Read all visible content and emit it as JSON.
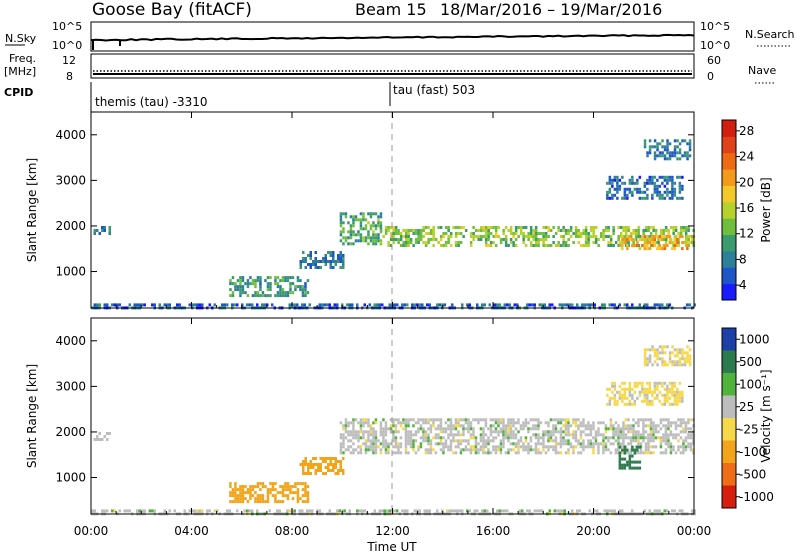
{
  "header": {
    "station": "Goose Bay (fitACF)",
    "beam": "Beam 15",
    "dates": "18/Mar/2016 – 19/Mar/2016"
  },
  "top_strip": {
    "nsky_label": "N.Sky",
    "nsearch_label": "N.Search",
    "left_ticks": [
      "10^5",
      "10^0"
    ],
    "right_ticks": [
      "10^5",
      "10^0"
    ],
    "freq_label_1": "Freq.",
    "freq_label_2": "[MHz]",
    "freq_ticks": [
      "12",
      "8"
    ],
    "nave_label": "Nave",
    "nave_ticks": [
      "60",
      "0"
    ],
    "cpid_label": "CPID",
    "cpid_left": "themis (tau) -3310",
    "cpid_right": "tau (fast) 503",
    "cpid_switch_hour": 12
  },
  "axes": {
    "x_ticks": [
      "00:00",
      "04:00",
      "08:00",
      "12:00",
      "16:00",
      "20:00",
      "00:00"
    ],
    "x_label": "Time UT",
    "y_ticks": [
      "1000",
      "2000",
      "3000",
      "4000"
    ],
    "y_label": "Slant Range [km]",
    "y_range": [
      200,
      4500
    ],
    "x_range": [
      0,
      24
    ]
  },
  "power_scale": {
    "label": "Power [dB]",
    "ticks": [
      "4",
      "8",
      "12",
      "16",
      "20",
      "24",
      "28"
    ],
    "colors": [
      "#1a1aff",
      "#1f55c8",
      "#2e7f9a",
      "#3a9b6e",
      "#6ebf3e",
      "#b6d12a",
      "#f2c82a",
      "#f39a1a",
      "#ef6a14",
      "#e0401a",
      "#d21e10"
    ]
  },
  "velocity_scale": {
    "label": "Velocity  [m s⁻¹]",
    "ticks": [
      "1000",
      "500",
      "100",
      "25",
      "-25",
      "-100",
      "-500",
      "-1000"
    ],
    "colors": [
      "#1d3fa8",
      "#2c7a4e",
      "#50b43c",
      "#bdbdbd",
      "#f6d94a",
      "#f2a41a",
      "#ef6d14",
      "#d61e10"
    ]
  },
  "chart_data": [
    {
      "type": "heatmap",
      "title": "",
      "xlabel": "Time UT",
      "ylabel": "Slant Range [km]",
      "colorbar_label": "Power [dB]",
      "xlim": [
        0,
        24
      ],
      "ylim": [
        200,
        4500
      ],
      "regions": [
        {
          "t": [
            0.1,
            0.7
          ],
          "r": [
            1850,
            2000
          ],
          "power": 8
        },
        {
          "t": [
            5.5,
            8.6
          ],
          "r": [
            500,
            900
          ],
          "power": 10
        },
        {
          "t": [
            8.3,
            10.0
          ],
          "r": [
            1100,
            1450
          ],
          "power": 8
        },
        {
          "t": [
            9.9,
            11.5
          ],
          "r": [
            1600,
            2300
          ],
          "power": 11
        },
        {
          "t": [
            11.5,
            24.0
          ],
          "r": [
            1550,
            2000
          ],
          "power": 14
        },
        {
          "t": [
            21.0,
            24.0
          ],
          "r": [
            1500,
            1800
          ],
          "power": 20
        },
        {
          "t": [
            20.5,
            23.5
          ],
          "r": [
            2600,
            3100
          ],
          "power": 7
        },
        {
          "t": [
            22.0,
            23.8
          ],
          "r": [
            3500,
            3900
          ],
          "power": 7
        },
        {
          "t": [
            0.0,
            24.0
          ],
          "r": [
            200,
            300
          ],
          "power": 6
        }
      ]
    },
    {
      "type": "heatmap",
      "title": "",
      "xlabel": "Time UT",
      "ylabel": "Slant Range [km]",
      "colorbar_label": "Velocity [m s-1]",
      "xlim": [
        0,
        24
      ],
      "ylim": [
        200,
        4500
      ],
      "regions": [
        {
          "t": [
            0.1,
            0.7
          ],
          "r": [
            1850,
            2000
          ],
          "velocity": 0
        },
        {
          "t": [
            5.5,
            8.6
          ],
          "r": [
            500,
            900
          ],
          "velocity": -300
        },
        {
          "t": [
            8.3,
            10.0
          ],
          "r": [
            1100,
            1450
          ],
          "velocity": -250
        },
        {
          "t": [
            9.9,
            24.0
          ],
          "r": [
            1550,
            2300
          ],
          "velocity": 0
        },
        {
          "t": [
            21.0,
            21.8
          ],
          "r": [
            1200,
            1700
          ],
          "velocity": 150
        },
        {
          "t": [
            20.5,
            23.5
          ],
          "r": [
            2600,
            3100
          ],
          "velocity": -40
        },
        {
          "t": [
            22.0,
            23.8
          ],
          "r": [
            3500,
            3900
          ],
          "velocity": -30
        },
        {
          "t": [
            0.0,
            24.0
          ],
          "r": [
            200,
            300
          ],
          "velocity": 0
        }
      ]
    }
  ]
}
